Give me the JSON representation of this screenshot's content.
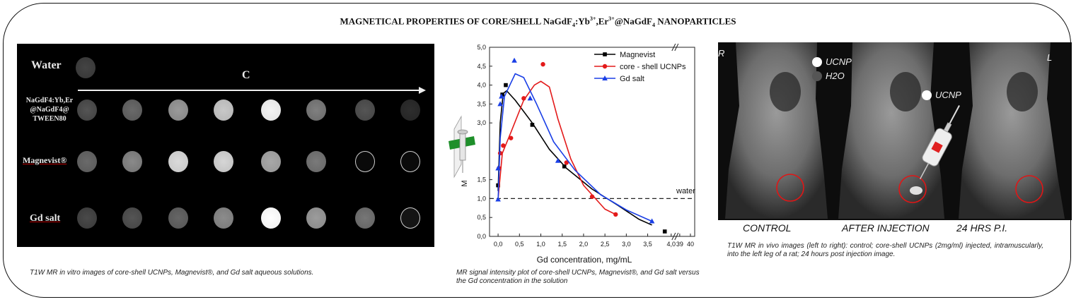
{
  "title": {
    "pre": "MAGNETICAL PROPERTIES OF CORE/SHELL NaGdF",
    "sub1": "4",
    "mid1": ":Yb",
    "sup1": "3+",
    "mid2": ",Er",
    "sup2": "3+",
    "mid3": "@NaGdF",
    "sub2": "4",
    "post": " NANOPARTICLES"
  },
  "panel_a": {
    "row_water": "Water",
    "row_ucnp_1": "NaGdF4:Yb,Er",
    "row_ucnp_2": "@NaGdF4@",
    "row_ucnp_3": "TWEEN80",
    "row_magnevist": "Magnevist®",
    "row_gd": "Gd salt",
    "arrow_label": "C",
    "caption": "T1W MR in vitro images of core-shell UCNPs, Magnevist®,  and Gd salt aqueous solutions."
  },
  "chart_data": {
    "type": "line",
    "xlabel": "Gd concentration, mg/mL",
    "ylabel": "M",
    "x_ticks": [
      "0,0",
      "0,5",
      "1,0",
      "1,5",
      "2,0",
      "2,5",
      "3,0",
      "3,5",
      "4,0",
      "39",
      "40"
    ],
    "y_ticks": [
      "0,0",
      "0,5",
      "1,0",
      "1,5",
      "3,0",
      "3,5",
      "4,0",
      "4,5",
      "5,0"
    ],
    "xlim": [
      -0.2,
      4.6
    ],
    "ylim": [
      0,
      5
    ],
    "series": [
      {
        "name": "Magnevist",
        "color": "#000000",
        "marker": "square",
        "points": [
          [
            0.0,
            1.35
          ],
          [
            0.1,
            3.75
          ],
          [
            0.18,
            4.0
          ],
          [
            0.8,
            2.95
          ],
          [
            1.55,
            1.85
          ],
          [
            3.9,
            0.13
          ]
        ],
        "curve": [
          [
            0.0,
            1.2
          ],
          [
            0.05,
            3.0
          ],
          [
            0.12,
            3.78
          ],
          [
            0.2,
            3.85
          ],
          [
            0.4,
            3.6
          ],
          [
            0.8,
            3.0
          ],
          [
            1.2,
            2.3
          ],
          [
            1.6,
            1.8
          ],
          [
            2.2,
            1.25
          ],
          [
            2.8,
            0.82
          ],
          [
            3.3,
            0.45
          ]
        ]
      },
      {
        "name": "core - shell UCNPs",
        "color": "#e31a1a",
        "marker": "circle",
        "points": [
          [
            0.02,
            1.8
          ],
          [
            0.05,
            2.2
          ],
          [
            0.12,
            2.4
          ],
          [
            0.3,
            2.6
          ],
          [
            0.6,
            3.65
          ],
          [
            1.05,
            4.55
          ],
          [
            1.6,
            1.95
          ],
          [
            2.2,
            1.05
          ],
          [
            2.75,
            0.58
          ]
        ],
        "curve": [
          [
            0.0,
            1.0
          ],
          [
            0.1,
            2.2
          ],
          [
            0.3,
            2.75
          ],
          [
            0.6,
            3.6
          ],
          [
            0.85,
            4.0
          ],
          [
            1.0,
            4.1
          ],
          [
            1.2,
            3.95
          ],
          [
            1.4,
            3.1
          ],
          [
            1.7,
            2.05
          ],
          [
            2.0,
            1.35
          ],
          [
            2.5,
            0.72
          ],
          [
            2.75,
            0.58
          ]
        ]
      },
      {
        "name": "Gd salt",
        "color": "#1a3fe6",
        "marker": "triangle",
        "points": [
          [
            0.0,
            0.98
          ],
          [
            0.0,
            1.8
          ],
          [
            0.05,
            3.5
          ],
          [
            0.08,
            3.7
          ],
          [
            0.38,
            4.65
          ],
          [
            0.75,
            3.65
          ],
          [
            1.4,
            2.0
          ],
          [
            3.6,
            0.4
          ]
        ],
        "curve": [
          [
            0.0,
            0.95
          ],
          [
            0.05,
            2.6
          ],
          [
            0.15,
            3.7
          ],
          [
            0.4,
            4.3
          ],
          [
            0.6,
            4.2
          ],
          [
            0.9,
            3.5
          ],
          [
            1.3,
            2.5
          ],
          [
            1.8,
            1.75
          ],
          [
            2.4,
            1.1
          ],
          [
            3.0,
            0.7
          ],
          [
            3.6,
            0.4
          ]
        ]
      }
    ],
    "reference_line": {
      "label": "water",
      "y": 1.0
    },
    "legend_position": "top-right",
    "caption": "MR signal intensity plot of core-shell  UCNPs, Magnevist®, and Gd salt  versus the Gd concentration in the solution"
  },
  "panel_c": {
    "legend_ucnp": "UCNP",
    "legend_h2o": "H2O",
    "syringe_label": "UCNP",
    "side_r": "R",
    "side_l": "L",
    "label_control": "CONTROL",
    "label_after": "AFTER INJECTION",
    "label_24h": "24 HRS P.I.",
    "caption": "T1W MR in vivo images (left to right): control; core-shell UCNPs (2mg/ml) injected, intramuscularly, into the left leg of a rat; 24 hours post injection image."
  },
  "colors": {
    "frame": "#111111",
    "marker_red": "#e31a1a",
    "marker_blue": "#1a3fe6",
    "highlight_circle": "#e01616"
  }
}
